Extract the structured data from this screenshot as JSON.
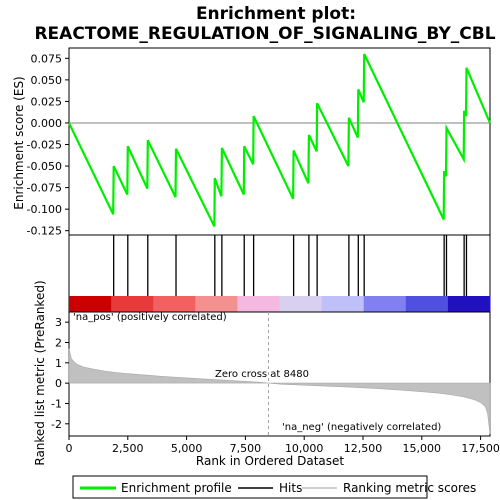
{
  "chart_data": {
    "type": "line",
    "title_line1": "Enrichment plot:",
    "title_line2": "REACTOME_REGULATION_OF_SIGNALING_BY_CBL",
    "xlabel": "Rank in Ordered Dataset",
    "ylabel_top": "Enrichment score (ES)",
    "ylabel_bottom": "Ranked list metric (PreRanked)",
    "x_max": 17900,
    "es_ylim": [
      -0.13,
      0.087
    ],
    "es_yticks": [
      0.075,
      0.05,
      0.025,
      0.0,
      -0.025,
      -0.05,
      -0.075,
      -0.1,
      -0.125
    ],
    "es_ytick_labels": [
      "0.075",
      "0.050",
      "0.025",
      "0.000",
      "-0.025",
      "-0.050",
      "-0.075",
      "-0.100",
      "-0.125"
    ],
    "metric_ylim": [
      -2.6,
      3.5
    ],
    "metric_yticks": [
      3,
      2,
      1,
      0,
      -1,
      -2
    ],
    "metric_ytick_labels": [
      "3",
      "2",
      "1",
      "0",
      "-1",
      "-2"
    ],
    "xticks": [
      0,
      2500,
      5000,
      7500,
      10000,
      12500,
      15000,
      17500
    ],
    "xtick_labels": [
      "0",
      "2,500",
      "5,000",
      "7,500",
      "10,000",
      "12,500",
      "15,000",
      "17,500"
    ],
    "hits": [
      1900,
      2500,
      3350,
      4550,
      6200,
      6500,
      7450,
      7850,
      9550,
      10200,
      10550,
      11900,
      12300,
      12550,
      15950,
      16050,
      16800,
      16900
    ],
    "enrichment_profile": {
      "x": [
        0,
        1880,
        1900,
        2480,
        2500,
        3330,
        3350,
        4530,
        4550,
        6180,
        6200,
        6480,
        6500,
        7430,
        7450,
        7830,
        7850,
        9530,
        9550,
        10180,
        10200,
        10530,
        10550,
        11880,
        11900,
        12280,
        12300,
        12530,
        12550,
        15930,
        15950,
        16030,
        16050,
        16780,
        16800,
        16880,
        16900,
        17900
      ],
      "y": [
        0.0,
        -0.106,
        -0.05,
        -0.083,
        -0.027,
        -0.076,
        -0.02,
        -0.086,
        -0.03,
        -0.12,
        -0.064,
        -0.085,
        -0.029,
        -0.083,
        -0.027,
        -0.048,
        0.008,
        -0.088,
        -0.032,
        -0.07,
        -0.014,
        -0.033,
        0.023,
        -0.05,
        0.006,
        -0.017,
        0.039,
        0.024,
        0.08,
        -0.112,
        -0.056,
        -0.062,
        -0.006,
        -0.042,
        0.014,
        0.008,
        0.064,
        0.0
      ]
    },
    "ranking_metric": {
      "x": [
        0,
        100,
        300,
        600,
        1000,
        1500,
        2000,
        3000,
        4000,
        5000,
        6000,
        7000,
        8000,
        8480,
        9000,
        10000,
        11000,
        12000,
        13000,
        14000,
        15000,
        15800,
        16300,
        16800,
        17200,
        17500,
        17700,
        17800,
        17900
      ],
      "y": [
        1.7,
        1.2,
        0.95,
        0.8,
        0.7,
        0.6,
        0.52,
        0.42,
        0.33,
        0.26,
        0.19,
        0.12,
        0.05,
        0.0,
        -0.05,
        -0.1,
        -0.15,
        -0.2,
        -0.26,
        -0.33,
        -0.42,
        -0.5,
        -0.58,
        -0.68,
        -0.8,
        -0.95,
        -1.15,
        -1.5,
        -2.5
      ]
    },
    "zero_cross_label": "Zero cross at 8480",
    "zero_cross_x": 8480,
    "pos_label": "'na_pos' (positively correlated)",
    "neg_label": "'na_neg' (negatively correlated)",
    "legend": {
      "entries": [
        "Enrichment profile",
        "Hits",
        "Ranking metric scores"
      ],
      "colors": [
        "#00ee00",
        "#000000",
        "#c0c0c0"
      ],
      "placement": "bottom"
    },
    "colors": {
      "profile": "#00ee00",
      "hits": "#000000",
      "metric_fill": "#c0c0c0",
      "zero_line": "#a0a0a0",
      "pos_text": "#cc0000",
      "neg_text": "#0000cc",
      "band_colors": [
        "#cc0000",
        "#e83a3a",
        "#f26060",
        "#f59090",
        "#f5b8e0",
        "#d8d0f0",
        "#c0c0f8",
        "#8080f0",
        "#5050e0",
        "#2010c0"
      ]
    }
  }
}
